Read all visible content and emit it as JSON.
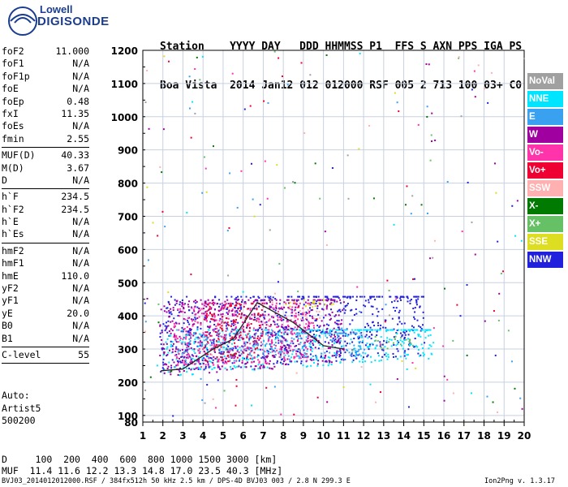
{
  "logo": {
    "line1": "Lowell",
    "line2": "DIGISONDE"
  },
  "header": {
    "line1": "Station    YYYY DAY   DDD HHMMSS P1  FFS S AXN PPS IGA PS",
    "line2": "Boa Vista  2014 Jan12 012 012000 RSF 005 2 713 100 03+ C0"
  },
  "params": [
    {
      "name": "foF2",
      "value": "11.000"
    },
    {
      "name": "foF1",
      "value": "N/A"
    },
    {
      "name": "foF1p",
      "value": "N/A"
    },
    {
      "name": "foE",
      "value": "N/A"
    },
    {
      "name": "foEp",
      "value": "0.48"
    },
    {
      "name": "fxI",
      "value": "11.35"
    },
    {
      "name": "foEs",
      "value": "N/A"
    },
    {
      "name": "fmin",
      "value": "2.55"
    },
    {
      "sep": true
    },
    {
      "name": "MUF(D)",
      "value": "40.33"
    },
    {
      "name": "M(D)",
      "value": "3.67"
    },
    {
      "name": "D",
      "value": "N/A"
    },
    {
      "sep": true
    },
    {
      "name": "h`F",
      "value": "234.5"
    },
    {
      "name": "h`F2",
      "value": "234.5"
    },
    {
      "name": "h`E",
      "value": "N/A"
    },
    {
      "name": "h`Es",
      "value": "N/A"
    },
    {
      "sep": true
    },
    {
      "name": "hmF2",
      "value": "N/A"
    },
    {
      "name": "hmF1",
      "value": "N/A"
    },
    {
      "name": "hmE",
      "value": "110.0"
    },
    {
      "name": "yF2",
      "value": "N/A"
    },
    {
      "name": "yF1",
      "value": "N/A"
    },
    {
      "name": "yE",
      "value": "20.0"
    },
    {
      "name": "B0",
      "value": "N/A"
    },
    {
      "name": "B1",
      "value": "N/A"
    },
    {
      "sep": true
    },
    {
      "name": "C-level",
      "value": "55"
    },
    {
      "sep": true
    }
  ],
  "auto": {
    "line1": "Auto:",
    "line2": "Artist5",
    "line3": "500200"
  },
  "bottom": {
    "dist_row": "D     100  200  400  600  800 1000 1500 3000 [km]",
    "muf_row": "MUF  11.4 11.6 12.2 13.3 14.8 17.0 23.5 40.3 [MHz]",
    "file_info": "BVJ03_2014012012000.RSF / 384fx512h 50 kHz 2.5 km / DPS-4D BVJ03 003 / 2.8 N 299.3 E",
    "version": "Ion2Png v. 1.3.17"
  },
  "legend": [
    {
      "label": "NoVal",
      "color": "#a0a0a0"
    },
    {
      "label": "NNE",
      "color": "#00e5ff"
    },
    {
      "label": "E",
      "color": "#3aa0f0"
    },
    {
      "label": "W",
      "color": "#a000a0"
    },
    {
      "label": "Vo-",
      "color": "#ff33aa"
    },
    {
      "label": "Vo+",
      "color": "#ee0033"
    },
    {
      "label": "SSW",
      "color": "#ffb0b0"
    },
    {
      "label": "X-",
      "color": "#007a00"
    },
    {
      "label": "X+",
      "color": "#66c066"
    },
    {
      "label": "SSE",
      "color": "#dddd22"
    },
    {
      "label": "NNW",
      "color": "#2020dd"
    }
  ],
  "chart_data": {
    "type": "scatter",
    "title": "",
    "xlabel": "",
    "ylabel": "",
    "xlim": [
      1,
      20
    ],
    "ylim": [
      80,
      1200
    ],
    "grid": true,
    "x_ticks": [
      1,
      2,
      3,
      4,
      5,
      6,
      7,
      8,
      9,
      10,
      11,
      12,
      13,
      14,
      15,
      16,
      17,
      18,
      19,
      20
    ],
    "y_ticks": [
      100,
      200,
      300,
      400,
      500,
      600,
      700,
      800,
      900,
      1000,
      1100,
      1200
    ],
    "y_tick_labels_extra": [
      80
    ],
    "legend_position": "right",
    "trace_line": {
      "x": [
        1.9,
        3.0,
        4.5,
        5.5,
        6.7,
        8.5,
        10.0,
        11.0
      ],
      "y": [
        234.5,
        240,
        300,
        330,
        440,
        380,
        310,
        300
      ]
    },
    "echo_regions": [
      {
        "series": "NNW",
        "x": [
          1.8,
          15.0
        ],
        "y": [
          230,
          460
        ]
      },
      {
        "series": "NNE",
        "x": [
          2.0,
          15.5
        ],
        "y": [
          220,
          360
        ]
      },
      {
        "series": "E",
        "x": [
          3.0,
          12.0
        ],
        "y": [
          250,
          350
        ]
      },
      {
        "series": "W",
        "x": [
          1.8,
          11.0
        ],
        "y": [
          220,
          450
        ]
      },
      {
        "series": "Vo-",
        "x": [
          2.5,
          9.5
        ],
        "y": [
          240,
          440
        ]
      },
      {
        "series": "Vo+",
        "x": [
          4.0,
          7.0
        ],
        "y": [
          260,
          440
        ]
      },
      {
        "series": "SSW",
        "x": [
          8.5,
          10.0
        ],
        "y": [
          390,
          420
        ]
      },
      {
        "series": "SSE",
        "x": [
          8.0,
          10.5
        ],
        "y": [
          420,
          450
        ]
      },
      {
        "series": "X+",
        "x": [
          12.5,
          14.5
        ],
        "y": [
          300,
          340
        ]
      }
    ]
  }
}
